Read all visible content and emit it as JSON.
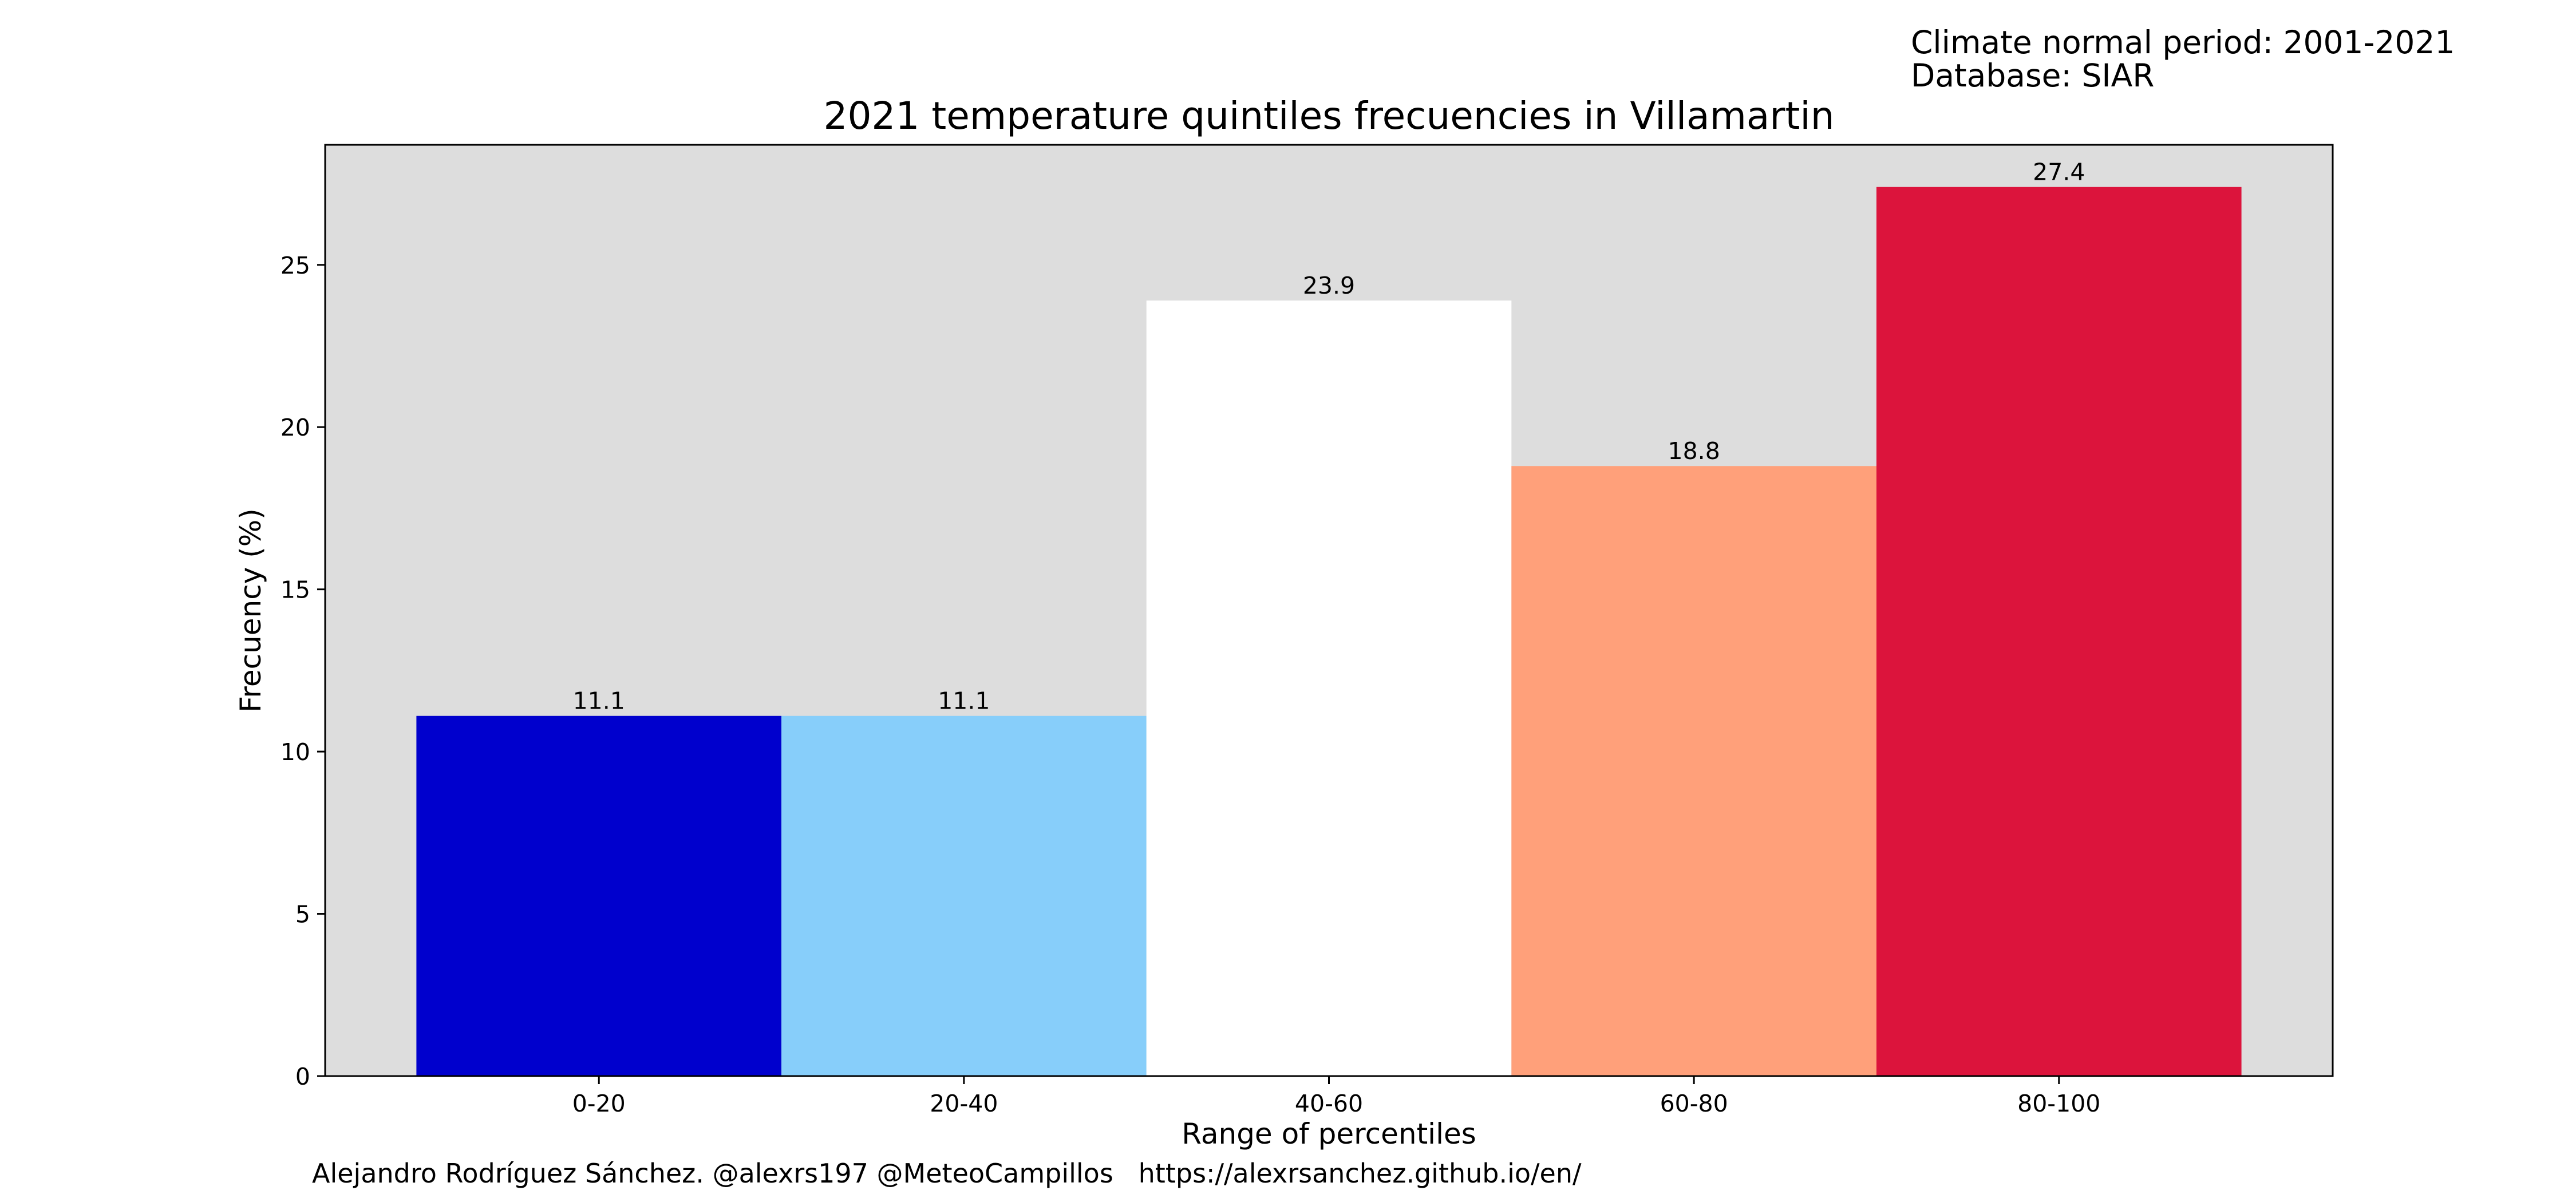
{
  "header": {
    "period_text": "Climate normal period: 2001-2021",
    "database_text": "Database: SIAR"
  },
  "footer": {
    "credit_text": "Alejandro Rodríguez Sánchez. @alexrs197 @MeteoCampillos   https://alexrsanchez.github.io/en/"
  },
  "chart_data": {
    "type": "bar",
    "title": "2021 temperature quintiles frecuencies in Villamartin",
    "xlabel": "Range of percentiles",
    "ylabel": "Frecuency (%)",
    "categories": [
      "0-20",
      "20-40",
      "40-60",
      "60-80",
      "80-100"
    ],
    "values": [
      11.1,
      11.1,
      23.9,
      18.8,
      27.4
    ],
    "value_labels": [
      "11.1",
      "11.1",
      "23.9",
      "18.8",
      "27.4"
    ],
    "colors": [
      "#0000cd",
      "#87cefa",
      "#ffffff",
      "#ffa07a",
      "#dc143c"
    ],
    "plot_background": "#dddddd",
    "ylim": [
      0,
      28.7
    ],
    "yticks": [
      0,
      5,
      10,
      15,
      20,
      25
    ],
    "grid": false,
    "legend": "none"
  }
}
